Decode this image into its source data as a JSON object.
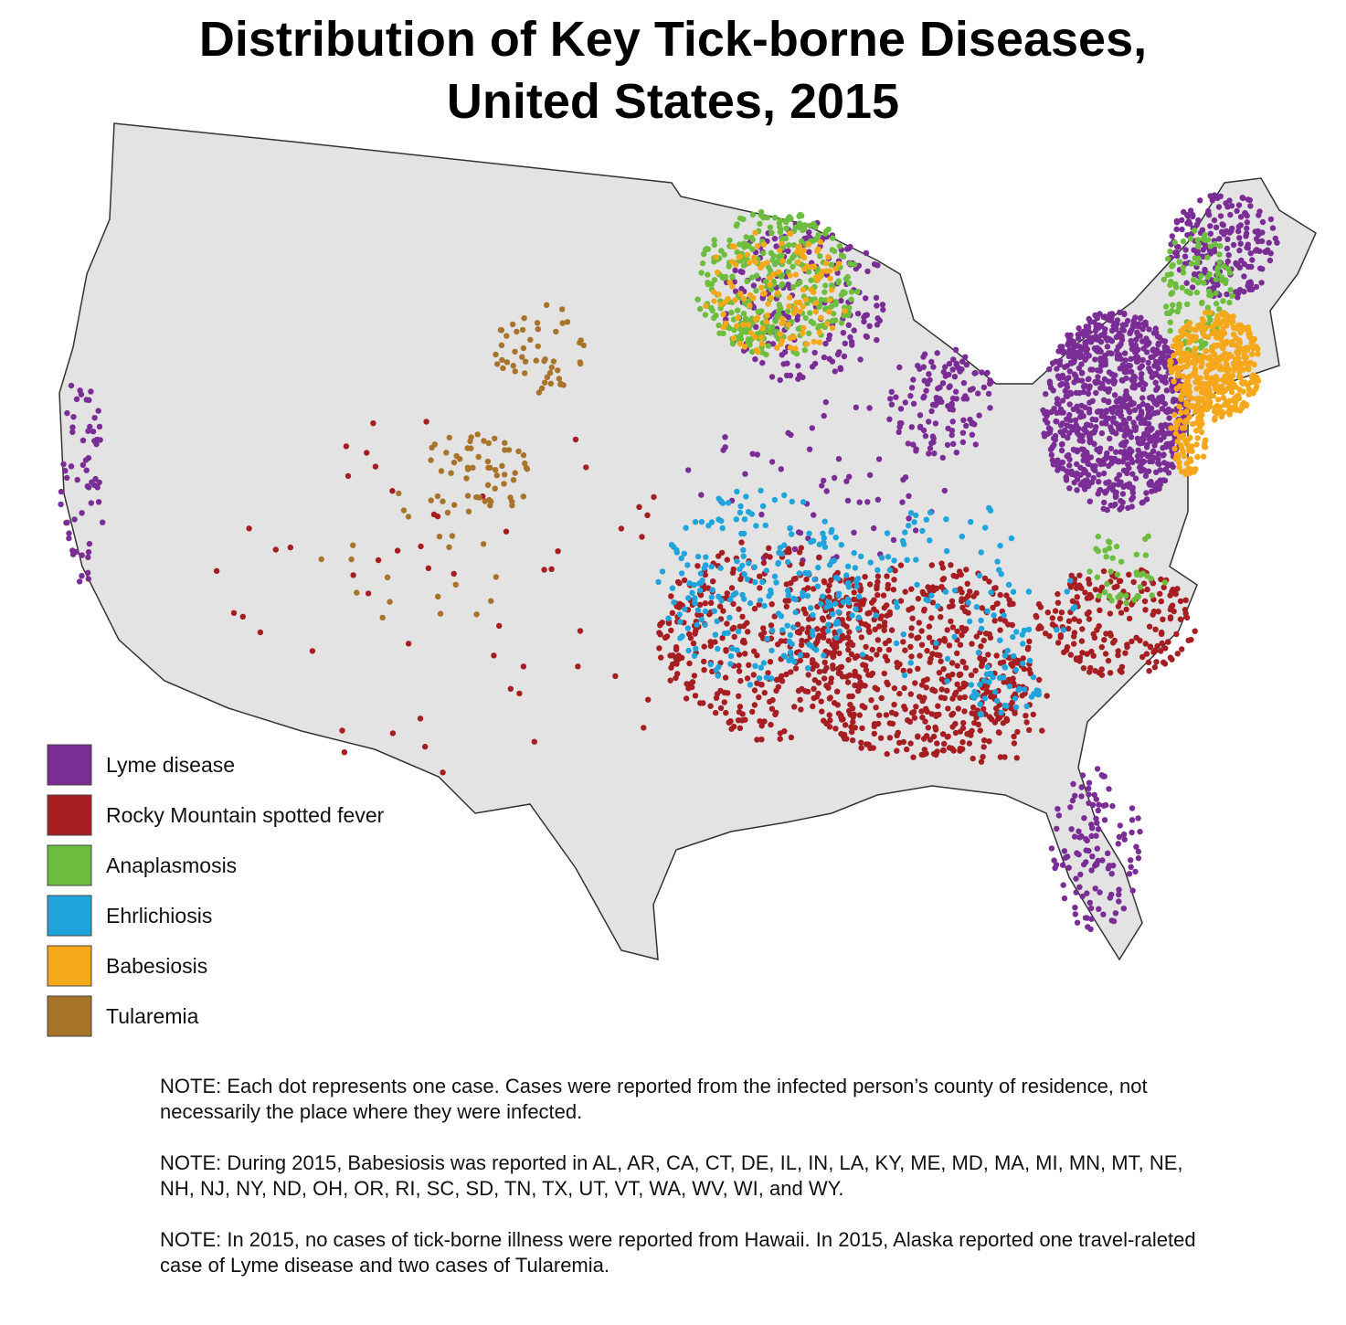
{
  "title": [
    "Distribution of Key Tick-borne Diseases,",
    "United States, 2015"
  ],
  "legend": [
    {
      "name": "Lyme disease",
      "color": "#7b2d96"
    },
    {
      "name": "Rocky Mountain spotted fever",
      "color": "#a61e22"
    },
    {
      "name": "Anaplasmosis",
      "color": "#6dbd3f"
    },
    {
      "name": "Ehrlichiosis",
      "color": "#1fa4dc"
    },
    {
      "name": "Babesiosis",
      "color": "#f6a81b"
    },
    {
      "name": "Tularemia",
      "color": "#a8742a"
    }
  ],
  "notes": [
    "NOTE: Each dot represents one case.  Cases were reported from the infected person’s county of residence, not necessarily the place where they were infected.",
    "NOTE: During 2015, Babesiosis was reported in AL, AR, CA, CT, DE, IL, IN, LA, KY, ME, MD, MA, MI, MN, MT, NE, NH, NJ, NY, ND, OH, OR, RI, SC, SD, TN, TX, UT, VT, WA, WV, WI, and WY.",
    "NOTE: In 2015, no cases of tick-borne illness were reported from Hawaii. In 2015, Alaska reported one travel-raleted case of Lyme disease and two cases of Tularemia."
  ]
}
